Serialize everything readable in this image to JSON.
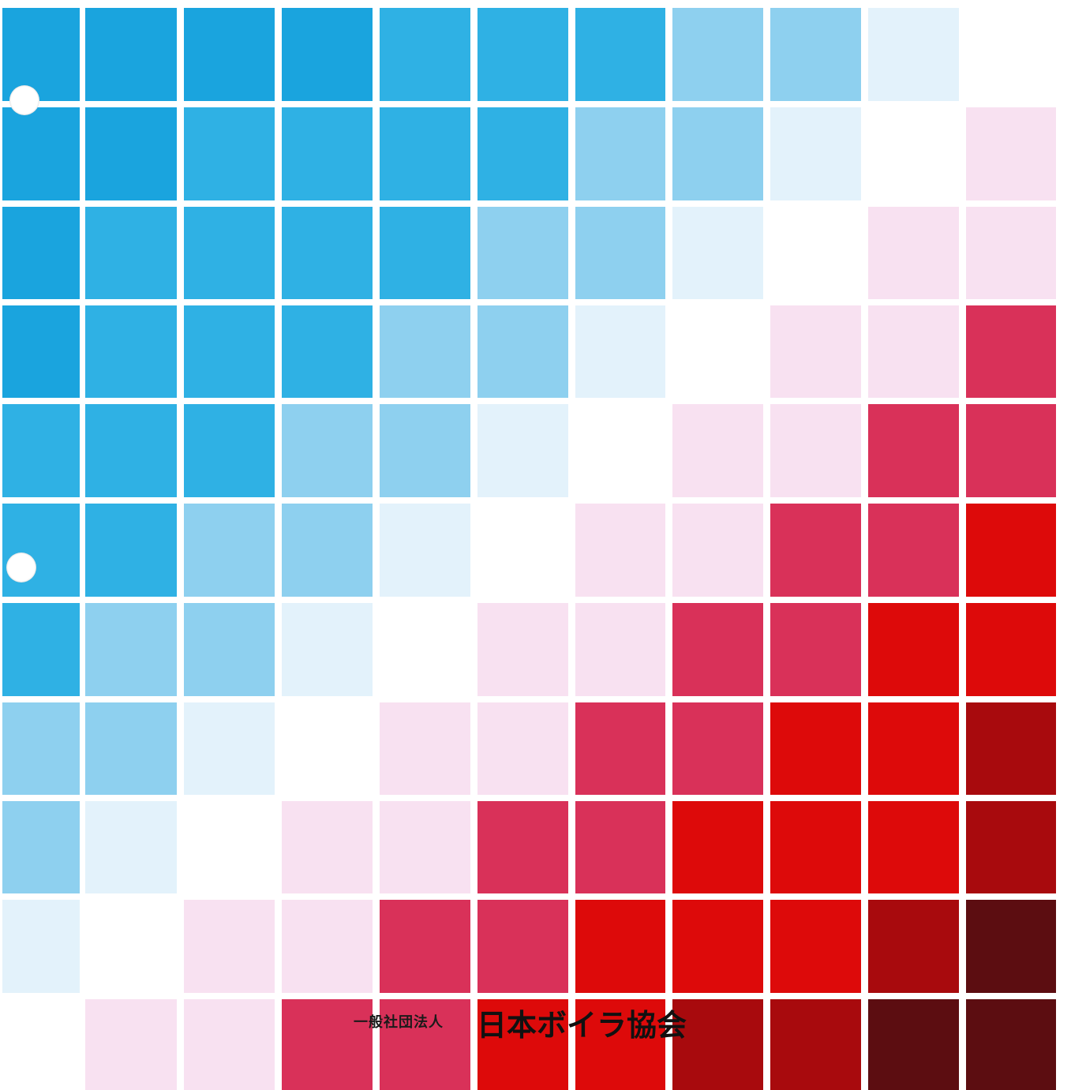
{
  "cover": {
    "organization_type": "一般社団法人",
    "organization_name": "日本ボイラ協会"
  },
  "palette": {
    "B1": "#1aa4de",
    "B2": "#2fb1e4",
    "B3": "#8ed0ef",
    "B4": "#e3f2fb",
    "W": "#ffffff",
    "P": "#f8e1f1",
    "M": "#d93159",
    "R": "#dd0a0a",
    "D": "#a80a0d",
    "K": "#5c0d11"
  },
  "tile_rows": [
    [
      "B1",
      "B1",
      "B1",
      "B1",
      "B2",
      "B2",
      "B2",
      "B3",
      "B3",
      "B4",
      "W"
    ],
    [
      "B1",
      "B1",
      "B2",
      "B2",
      "B2",
      "B2",
      "B3",
      "B3",
      "B4",
      "W",
      "P"
    ],
    [
      "B1",
      "B2",
      "B2",
      "B2",
      "B2",
      "B3",
      "B3",
      "B4",
      "W",
      "P",
      "P"
    ],
    [
      "B1",
      "B2",
      "B2",
      "B2",
      "B3",
      "B3",
      "B4",
      "W",
      "P",
      "P",
      "M"
    ],
    [
      "B2",
      "B2",
      "B2",
      "B3",
      "B3",
      "B4",
      "W",
      "P",
      "P",
      "M",
      "M"
    ],
    [
      "B2",
      "B2",
      "B3",
      "B3",
      "B4",
      "W",
      "P",
      "P",
      "M",
      "M",
      "R"
    ],
    [
      "B2",
      "B3",
      "B3",
      "B4",
      "W",
      "P",
      "P",
      "M",
      "M",
      "R",
      "R"
    ],
    [
      "B3",
      "B3",
      "B4",
      "W",
      "P",
      "P",
      "M",
      "M",
      "R",
      "R",
      "D"
    ],
    [
      "B3",
      "B4",
      "W",
      "P",
      "P",
      "M",
      "M",
      "R",
      "R",
      "R",
      "D"
    ],
    [
      "B4",
      "W",
      "P",
      "P",
      "M",
      "M",
      "R",
      "R",
      "R",
      "D",
      "K"
    ],
    [
      "W",
      "P",
      "P",
      "M",
      "M",
      "R",
      "R",
      "D",
      "D",
      "K",
      "K"
    ]
  ]
}
